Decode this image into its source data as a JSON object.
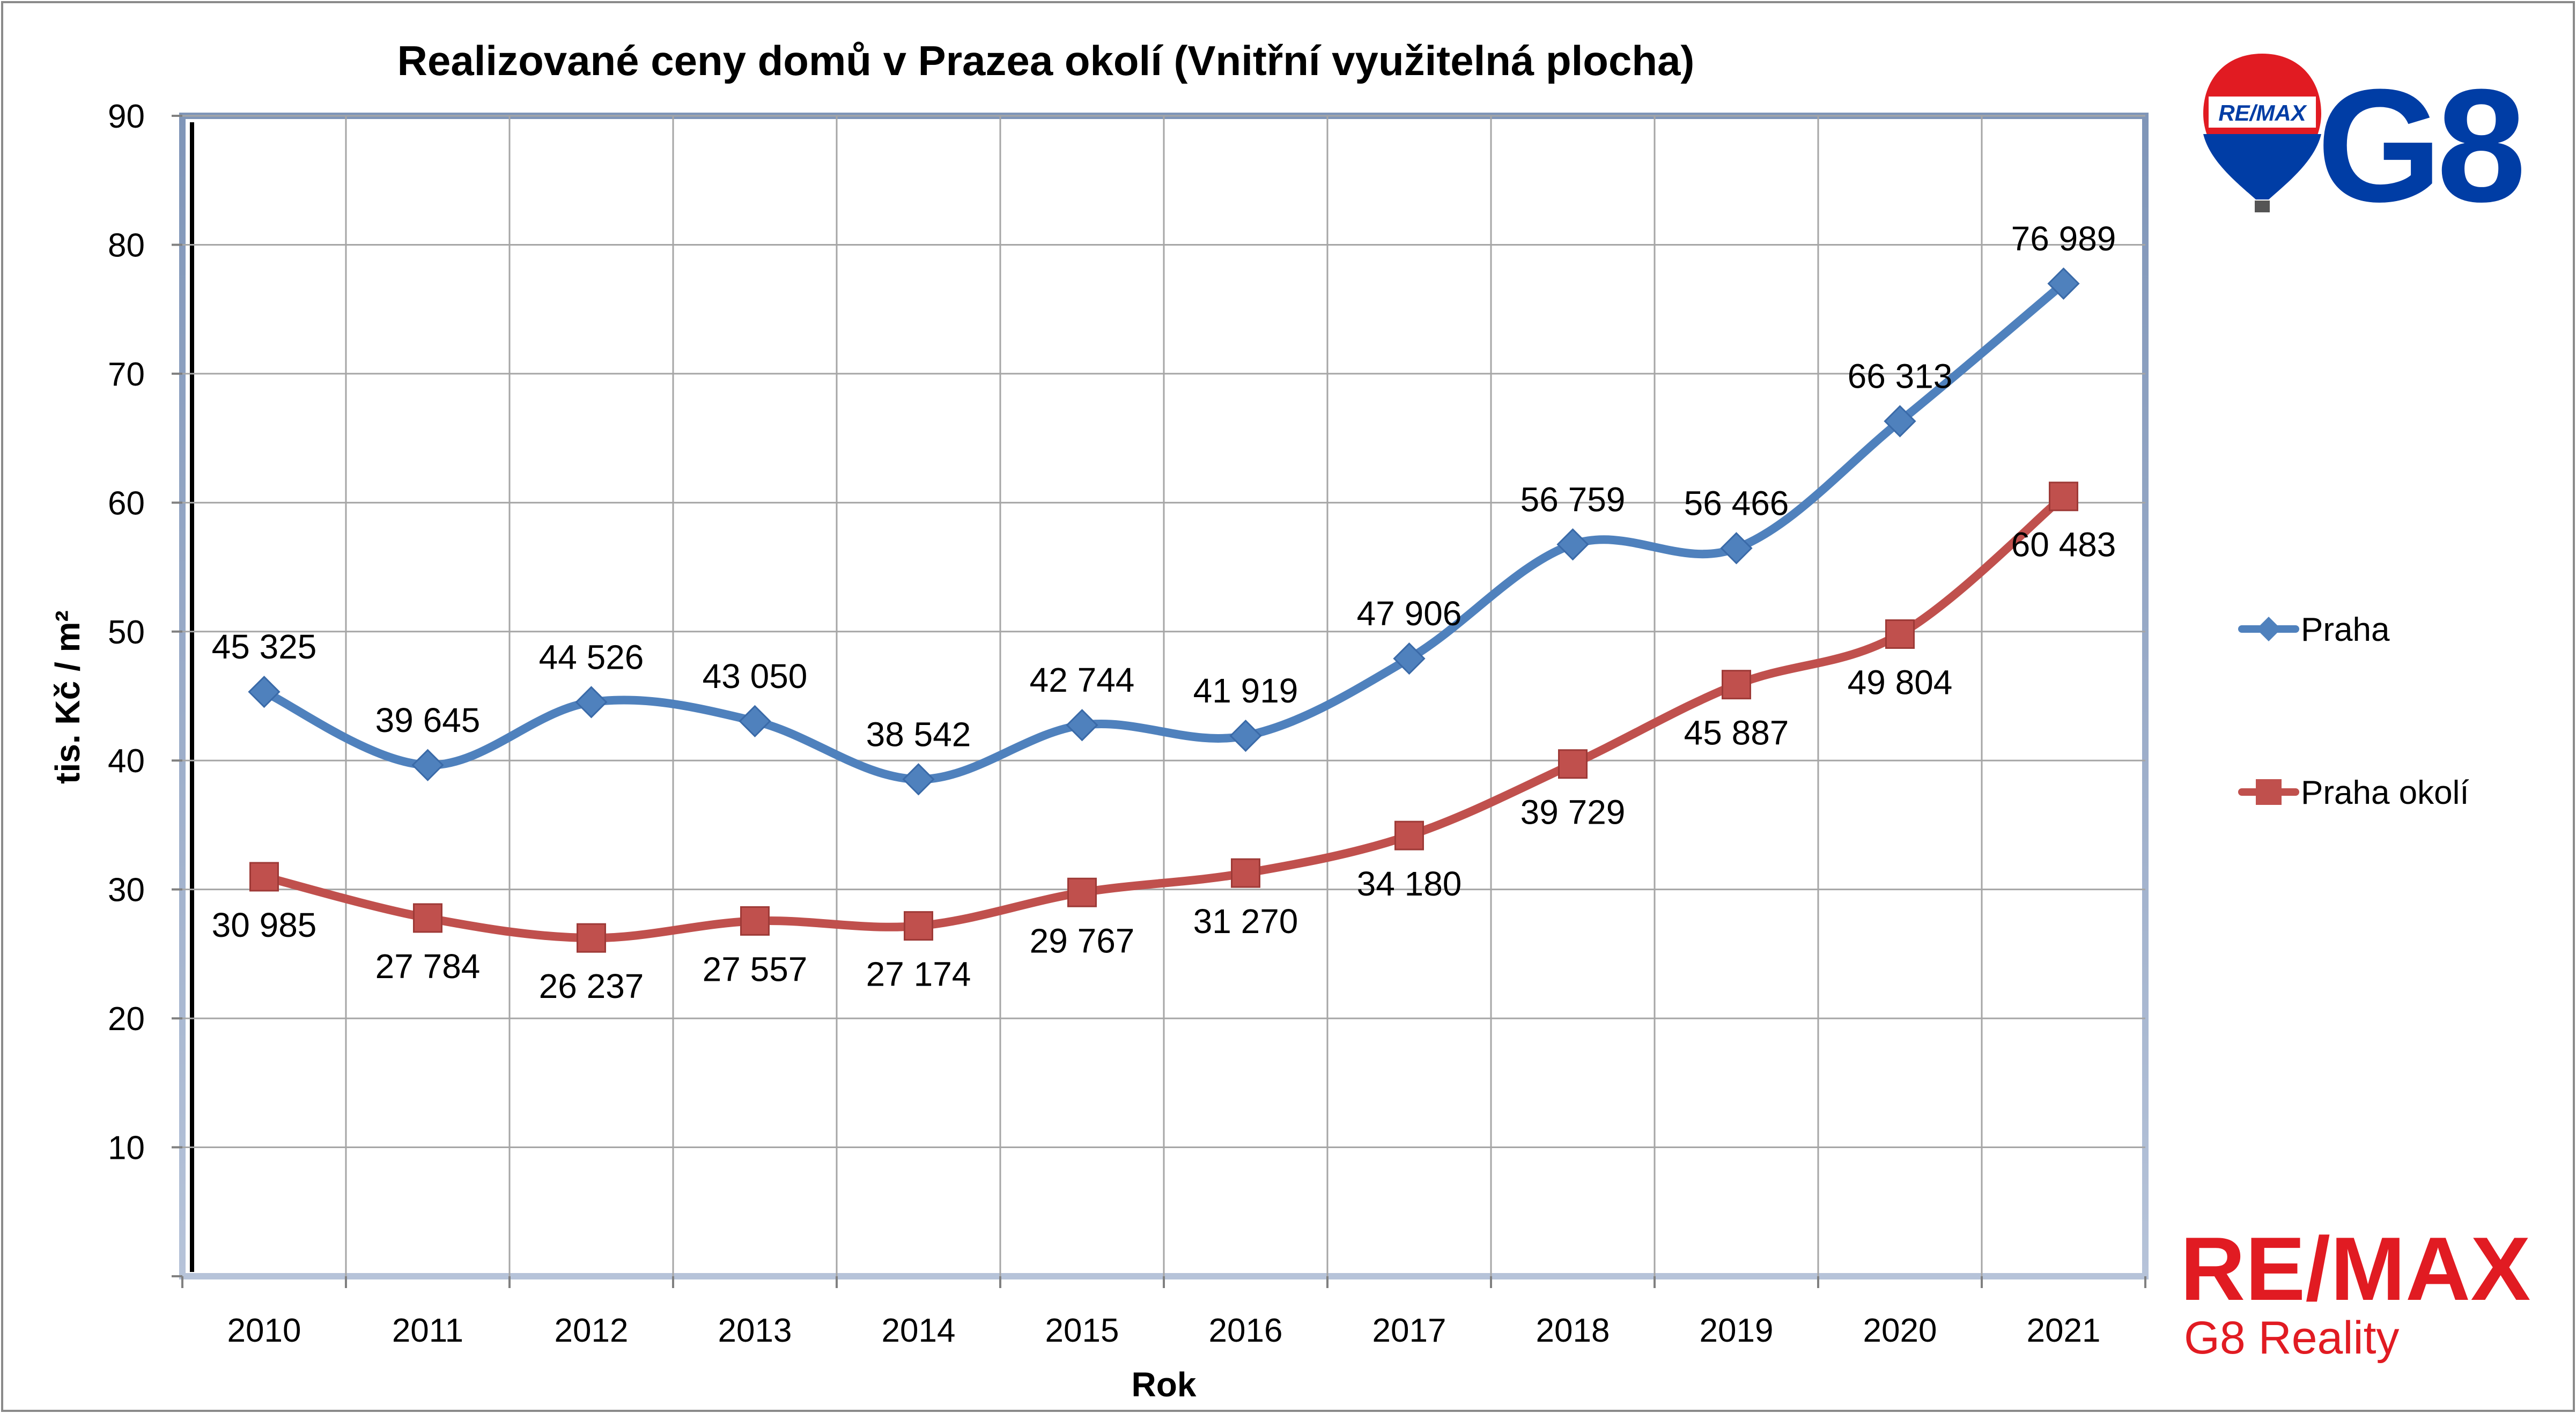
{
  "chart_data": {
    "type": "line",
    "title": "Realizované ceny domů v Prazea okolí (Vnitřní využitelná plocha)",
    "xlabel": "Rok",
    "ylabel": "tis. Kč / m²",
    "ylim": [
      0,
      90
    ],
    "yticks": [
      10,
      20,
      30,
      40,
      50,
      60,
      70,
      80,
      90
    ],
    "grid": true,
    "legend_position": "right",
    "smooth": true,
    "categories": [
      "2010",
      "2011",
      "2012",
      "2013",
      "2014",
      "2015",
      "2016",
      "2017",
      "2018",
      "2019",
      "2020",
      "2021"
    ],
    "series": [
      {
        "name": "Praha",
        "color": "#4F81BD",
        "marker": "diamond",
        "label_position": "above",
        "values": [
          45.325,
          39.645,
          44.526,
          43.05,
          38.542,
          42.744,
          41.919,
          47.906,
          56.759,
          56.466,
          66.313,
          76.989
        ],
        "labels": [
          "45 325",
          "39 645",
          "44 526",
          "43 050",
          "38 542",
          "42 744",
          "41 919",
          "47 906",
          "56 759",
          "56 466",
          "66 313",
          "76 989"
        ]
      },
      {
        "name": "Praha okolí",
        "color": "#C0504D",
        "marker": "square",
        "label_position": "below",
        "values": [
          30.985,
          27.784,
          26.237,
          27.557,
          27.174,
          29.767,
          31.27,
          34.18,
          39.729,
          45.887,
          49.804,
          60.483
        ],
        "labels": [
          "30 985",
          "27 784",
          "26 237",
          "27 557",
          "27 174",
          "29 767",
          "31 270",
          "34 180",
          "39 729",
          "45 887",
          "49 804",
          "60 483"
        ]
      }
    ]
  },
  "branding": {
    "balloon_logo_text": "RE/MAX",
    "g8_logo_text": "G8",
    "remax_wordmark": "RE/MAX",
    "company_name": "G8 Reality",
    "brand_red": "#E11B22",
    "brand_blue": "#003DA5"
  }
}
